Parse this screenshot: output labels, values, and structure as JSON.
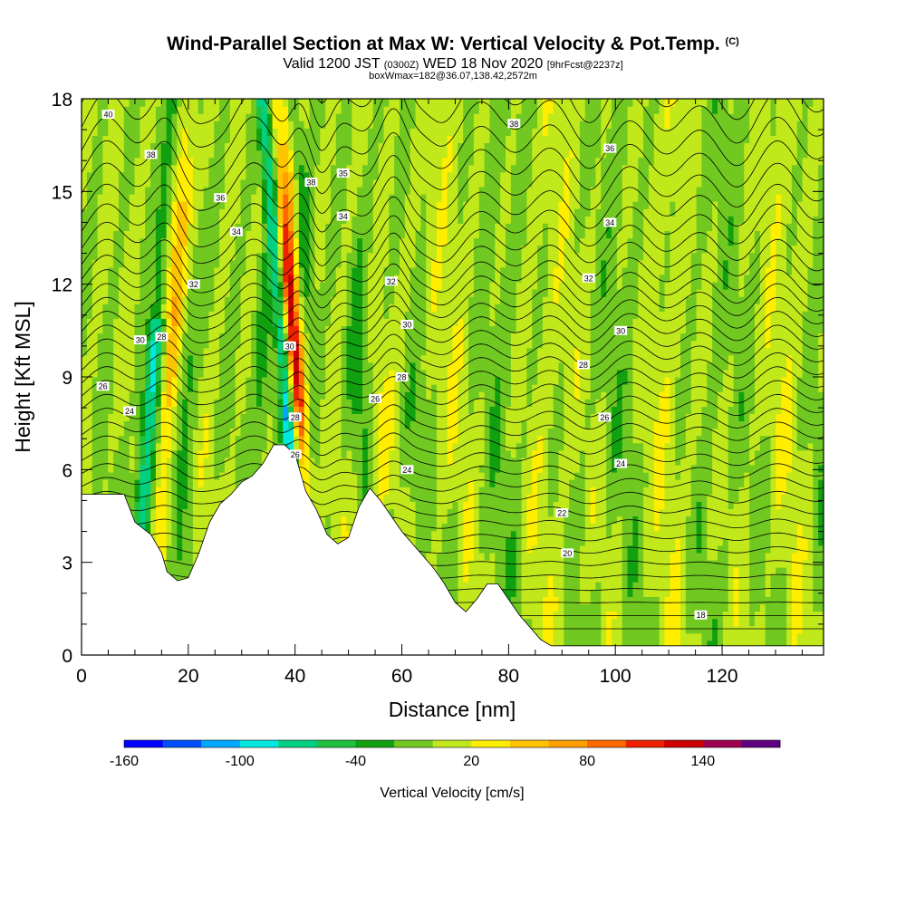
{
  "title": {
    "main": "Wind-Parallel Section at Max W: Vertical Velocity & Pot.Temp.",
    "copyright": "(C)",
    "valid_prefix": "Valid 1200 JST",
    "valid_utc": "(0300Z)",
    "valid_date": "WED 18 Nov 2020",
    "forecast": "[9hrFcst@2237z]",
    "boxinfo": "boxWmax=182@36.07,138.42,2572m"
  },
  "chart_data": {
    "type": "heatmap",
    "xlabel": "Distance [nm]",
    "ylabel": "Height [Kft MSL]",
    "xlim": [
      0,
      139
    ],
    "ylim": [
      0,
      18
    ],
    "x_ticks": [
      0,
      20,
      40,
      60,
      80,
      100,
      120
    ],
    "y_ticks": [
      0,
      3,
      6,
      9,
      12,
      15,
      18
    ],
    "colorbar": {
      "title": "Vertical Velocity [cm/s]",
      "levels": [
        -160,
        -140,
        -120,
        -100,
        -80,
        -60,
        -40,
        -20,
        0,
        20,
        40,
        60,
        80,
        100,
        120,
        140,
        160
      ],
      "labeled_values": [
        -160,
        -100,
        -40,
        20,
        80,
        140
      ],
      "colors": [
        "#0000ff",
        "#0050ff",
        "#00a8ff",
        "#00e8e0",
        "#00d080",
        "#20c040",
        "#10a010",
        "#70c820",
        "#c0e81a",
        "#ffee00",
        "#ffc400",
        "#ff9f00",
        "#ff6a00",
        "#ee2200",
        "#cc0000",
        "#a00050",
        "#600080"
      ]
    },
    "terrain_profile": [
      [
        0,
        5.2
      ],
      [
        8,
        5.2
      ],
      [
        10,
        4.3
      ],
      [
        13,
        3.9
      ],
      [
        15,
        3.3
      ],
      [
        16,
        2.7
      ],
      [
        18,
        2.4
      ],
      [
        20,
        2.5
      ],
      [
        22,
        3.3
      ],
      [
        24,
        4.3
      ],
      [
        26,
        4.9
      ],
      [
        28,
        5.2
      ],
      [
        30,
        5.6
      ],
      [
        32,
        5.8
      ],
      [
        34,
        6.2
      ],
      [
        36,
        6.8
      ],
      [
        38,
        6.8
      ],
      [
        40,
        6.5
      ],
      [
        42,
        5.3
      ],
      [
        44,
        4.7
      ],
      [
        46,
        3.9
      ],
      [
        48,
        3.6
      ],
      [
        50,
        3.8
      ],
      [
        52,
        4.8
      ],
      [
        54,
        5.4
      ],
      [
        56,
        5.0
      ],
      [
        58,
        4.5
      ],
      [
        60,
        4.0
      ],
      [
        62,
        3.6
      ],
      [
        64,
        3.2
      ],
      [
        66,
        2.8
      ],
      [
        68,
        2.3
      ],
      [
        70,
        1.7
      ],
      [
        72,
        1.4
      ],
      [
        74,
        1.8
      ],
      [
        76,
        2.3
      ],
      [
        78,
        2.3
      ],
      [
        80,
        1.8
      ],
      [
        82,
        1.3
      ],
      [
        84,
        0.9
      ],
      [
        86,
        0.5
      ],
      [
        88,
        0.3
      ],
      [
        139,
        0.3
      ]
    ],
    "contour_labels": [
      {
        "x": 5,
        "y": 17.5,
        "text": "40"
      },
      {
        "x": 13,
        "y": 16.2,
        "text": "38"
      },
      {
        "x": 26,
        "y": 14.8,
        "text": "36"
      },
      {
        "x": 29,
        "y": 13.7,
        "text": "34"
      },
      {
        "x": 21,
        "y": 12.0,
        "text": "32"
      },
      {
        "x": 11,
        "y": 10.2,
        "text": "30"
      },
      {
        "x": 15,
        "y": 10.3,
        "text": "28"
      },
      {
        "x": 4,
        "y": 8.7,
        "text": "26"
      },
      {
        "x": 9,
        "y": 7.9,
        "text": "24"
      },
      {
        "x": 43,
        "y": 15.3,
        "text": "38"
      },
      {
        "x": 49,
        "y": 15.6,
        "text": "35"
      },
      {
        "x": 49,
        "y": 14.2,
        "text": "34"
      },
      {
        "x": 58,
        "y": 12.1,
        "text": "32"
      },
      {
        "x": 61,
        "y": 10.7,
        "text": "30"
      },
      {
        "x": 39,
        "y": 10.0,
        "text": "30"
      },
      {
        "x": 60,
        "y": 9.0,
        "text": "28"
      },
      {
        "x": 55,
        "y": 8.3,
        "text": "26"
      },
      {
        "x": 40,
        "y": 7.7,
        "text": "28"
      },
      {
        "x": 40,
        "y": 6.5,
        "text": "26"
      },
      {
        "x": 61,
        "y": 6.0,
        "text": "24"
      },
      {
        "x": 81,
        "y": 17.2,
        "text": "38"
      },
      {
        "x": 99,
        "y": 16.4,
        "text": "36"
      },
      {
        "x": 99,
        "y": 14.0,
        "text": "34"
      },
      {
        "x": 95,
        "y": 12.2,
        "text": "32"
      },
      {
        "x": 101,
        "y": 10.5,
        "text": "30"
      },
      {
        "x": 94,
        "y": 9.4,
        "text": "28"
      },
      {
        "x": 98,
        "y": 7.7,
        "text": "26"
      },
      {
        "x": 101,
        "y": 6.2,
        "text": "24"
      },
      {
        "x": 90,
        "y": 4.6,
        "text": "22"
      },
      {
        "x": 91,
        "y": 3.3,
        "text": "20"
      },
      {
        "x": 116,
        "y": 1.3,
        "text": "18"
      }
    ]
  }
}
